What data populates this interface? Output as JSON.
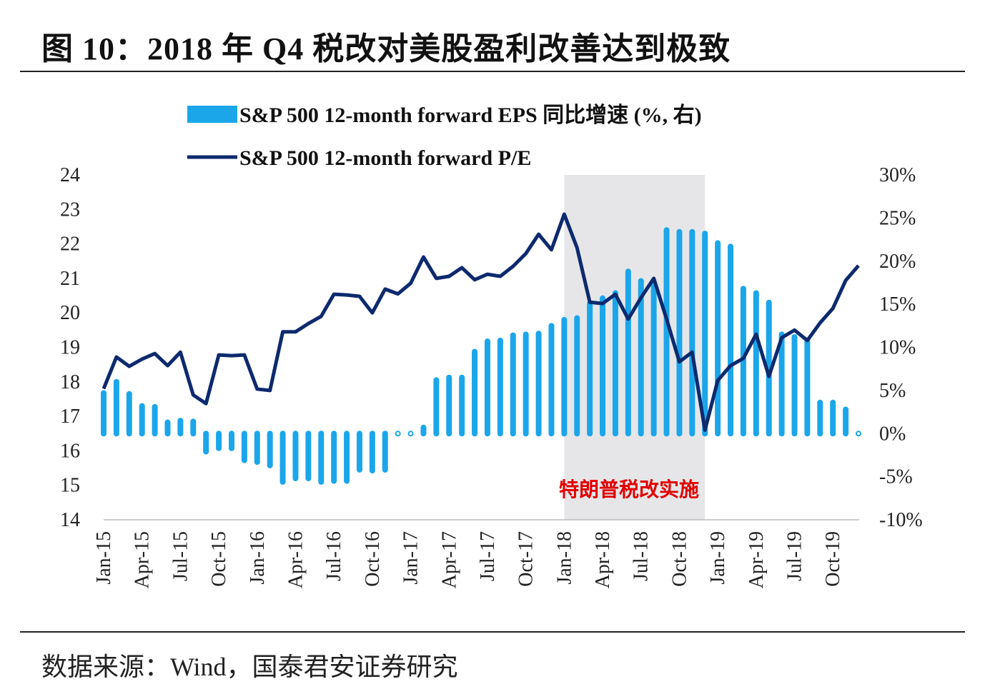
{
  "title": "图 10：2018 年 Q4 税改对美股盈利改善达到极致",
  "source": "数据来源：Wind，国泰君安证券研究",
  "chart_data": {
    "type": "bar+line",
    "title": "图 10：2018 年 Q4 税改对美股盈利改善达到极致",
    "legend_position": "top",
    "grid": false,
    "x": [
      "Jan-15",
      "Feb-15",
      "Mar-15",
      "Apr-15",
      "May-15",
      "Jun-15",
      "Jul-15",
      "Aug-15",
      "Sep-15",
      "Oct-15",
      "Nov-15",
      "Dec-15",
      "Jan-16",
      "Feb-16",
      "Mar-16",
      "Apr-16",
      "May-16",
      "Jun-16",
      "Jul-16",
      "Aug-16",
      "Sep-16",
      "Oct-16",
      "Nov-16",
      "Dec-16",
      "Jan-17",
      "Feb-17",
      "Mar-17",
      "Apr-17",
      "May-17",
      "Jun-17",
      "Jul-17",
      "Aug-17",
      "Sep-17",
      "Oct-17",
      "Nov-17",
      "Dec-17",
      "Jan-18",
      "Feb-18",
      "Mar-18",
      "Apr-18",
      "May-18",
      "Jun-18",
      "Jul-18",
      "Aug-18",
      "Sep-18",
      "Oct-18",
      "Nov-18",
      "Dec-18",
      "Jan-19",
      "Feb-19",
      "Mar-19",
      "Apr-19",
      "May-19",
      "Jun-19",
      "Jul-19",
      "Aug-19",
      "Sep-19",
      "Oct-19",
      "Nov-19",
      "Dec-19"
    ],
    "x_tick_labels": [
      "Jan-15",
      "Apr-15",
      "Jul-15",
      "Oct-15",
      "Jan-16",
      "Apr-16",
      "Jul-16",
      "Oct-16",
      "Jan-17",
      "Apr-17",
      "Jul-17",
      "Oct-17",
      "Jan-18",
      "Apr-18",
      "Jul-18",
      "Oct-18",
      "Jan-19",
      "Apr-19",
      "Jul-19",
      "Oct-19"
    ],
    "y_left": {
      "ylim": [
        14,
        24
      ],
      "ticks": [
        "14",
        "15",
        "16",
        "17",
        "18",
        "19",
        "20",
        "21",
        "22",
        "23",
        "24"
      ]
    },
    "y_right": {
      "ylim": [
        -10,
        30
      ],
      "ticks": [
        "-10%",
        "-5%",
        "0%",
        "5%",
        "10%",
        "15%",
        "20%",
        "25%",
        "30%"
      ]
    },
    "series": [
      {
        "name": "S&P 500 12-month forward EPS 同比增速 (%, 右)",
        "type": "bar",
        "axis": "right",
        "color": "#1ba6ea",
        "values": [
          4.7,
          6.0,
          4.6,
          3.2,
          3.1,
          1.3,
          1.5,
          1.4,
          -2.1,
          -1.7,
          -1.7,
          -3.1,
          -3.3,
          -3.7,
          -5.6,
          -5.2,
          -5.2,
          -5.6,
          -5.5,
          -5.5,
          -4.2,
          -4.3,
          -4.2,
          0.1,
          0.1,
          0.7,
          6.2,
          6.5,
          6.5,
          9.5,
          10.7,
          10.8,
          11.4,
          11.5,
          11.6,
          12.5,
          13.2,
          13.4,
          15.1,
          15.7,
          16.3,
          18.8,
          17.7,
          17.6,
          23.6,
          23.4,
          23.4,
          23.2,
          22.1,
          21.7,
          16.8,
          16.3,
          15.2,
          11.5,
          11.2,
          10.8,
          3.6,
          3.6,
          2.8,
          0.1
        ]
      },
      {
        "name": "S&P 500 12-month forward P/E",
        "type": "line",
        "axis": "left",
        "color": "#0d2a6e",
        "values": [
          17.8,
          18.72,
          18.45,
          18.66,
          18.82,
          18.47,
          18.86,
          17.62,
          17.37,
          18.78,
          18.76,
          18.78,
          17.79,
          17.75,
          19.45,
          19.45,
          19.69,
          19.9,
          20.54,
          20.52,
          20.48,
          20.0,
          20.69,
          20.55,
          20.86,
          21.62,
          21.0,
          21.06,
          21.31,
          20.96,
          21.12,
          21.06,
          21.35,
          21.72,
          22.28,
          21.83,
          22.86,
          21.89,
          20.31,
          20.27,
          20.54,
          19.82,
          20.44,
          21.0,
          19.82,
          18.58,
          18.86,
          16.6,
          18.04,
          18.47,
          18.68,
          19.38,
          18.16,
          19.28,
          19.5,
          19.2,
          19.71,
          20.13,
          20.94,
          21.37
        ]
      }
    ],
    "shaded_region": {
      "from": "Jan-18",
      "to": "Dec-18",
      "color": "#e6e6e8",
      "label": "特朗普税改实施",
      "label_color": "#e00000"
    }
  }
}
